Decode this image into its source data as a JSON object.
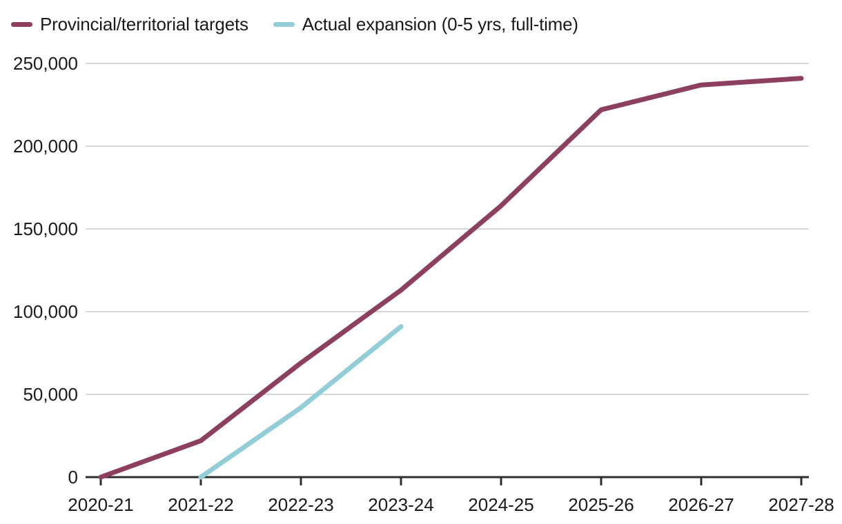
{
  "chart_data": {
    "type": "line",
    "categories": [
      "2020-21",
      "2021-22",
      "2022-23",
      "2023-24",
      "2024-25",
      "2025-26",
      "2026-27",
      "2027-28"
    ],
    "series": [
      {
        "name": "Provincial/territorial targets",
        "color": "#8d3f60",
        "values": [
          0,
          22000,
          69000,
          113000,
          164000,
          222000,
          237000,
          241000
        ]
      },
      {
        "name": "Actual expansion (0-5 yrs, full-time)",
        "color": "#92cdd8",
        "values": [
          null,
          0,
          42000,
          91000,
          null,
          null,
          null,
          null
        ]
      }
    ],
    "xlabel": "",
    "ylabel": "",
    "ylim": [
      0,
      250000
    ],
    "y_ticks": [
      0,
      50000,
      100000,
      150000,
      200000,
      250000
    ],
    "y_tick_labels": [
      "0",
      "50,000",
      "100,000",
      "150,000",
      "200,000",
      "250,000"
    ],
    "grid": "horizontal",
    "legend_position": "top-left",
    "colors": {
      "gridline": "#d6d6d6",
      "axis": "#2d2d2d",
      "text": "#1a1a1a",
      "background": "#ffffff"
    }
  }
}
